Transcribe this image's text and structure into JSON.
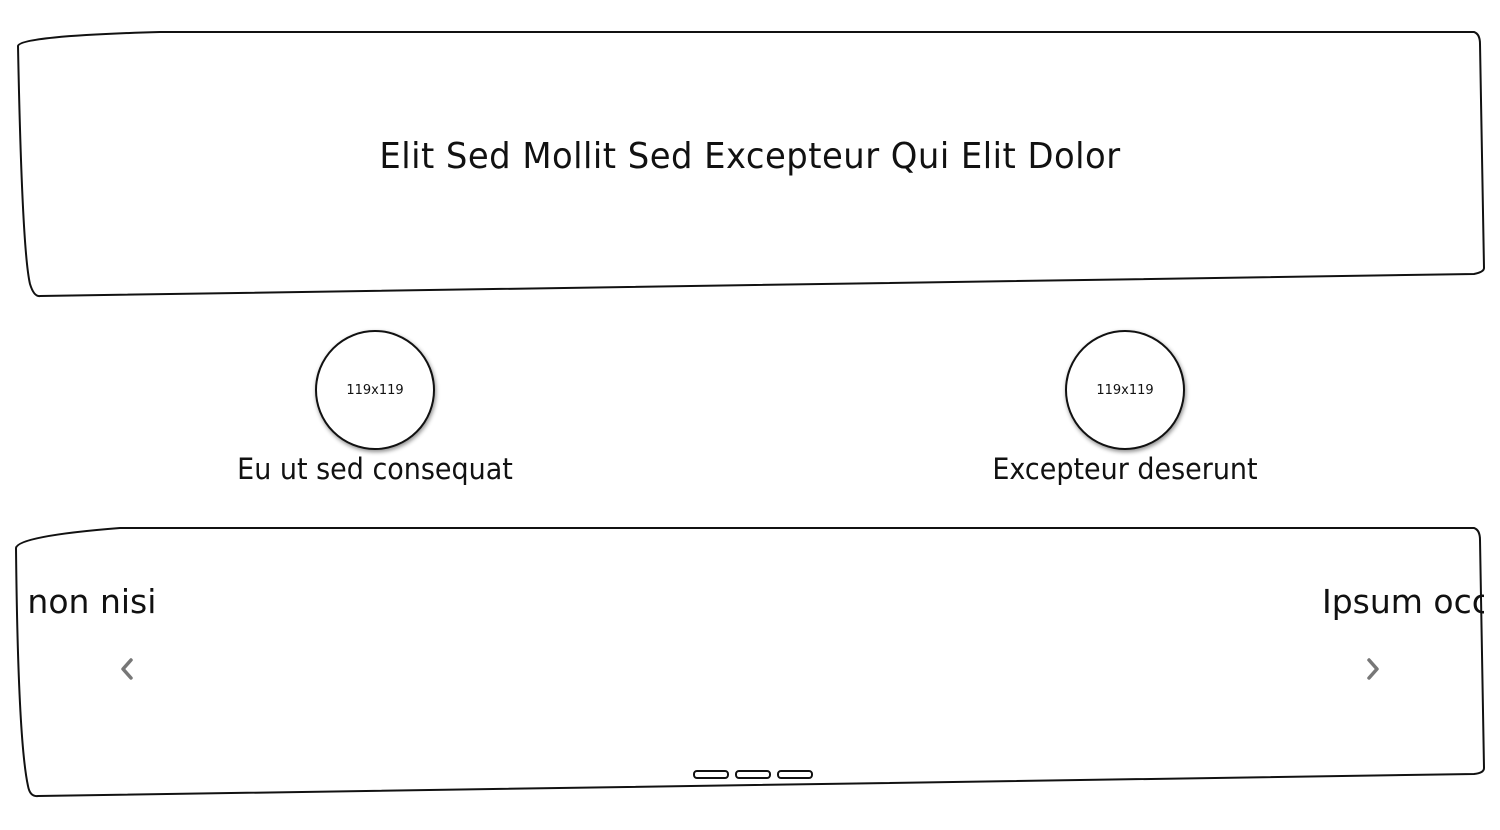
{
  "header": {
    "title": "Elit Sed Mollit Sed Excepteur Qui Elit Dolor"
  },
  "profiles": [
    {
      "placeholder": "119x119",
      "caption": "Eu ut sed consequat"
    },
    {
      "placeholder": "119x119",
      "caption": "Excepteur deserunt"
    }
  ],
  "carousel": {
    "slide_left_text": "g non nisi",
    "slide_right_text": "Ipsum occ",
    "prev_icon": "chevron-left-icon",
    "next_icon": "chevron-right-icon",
    "indicator_count": 3,
    "arrow_color": "#777777"
  }
}
